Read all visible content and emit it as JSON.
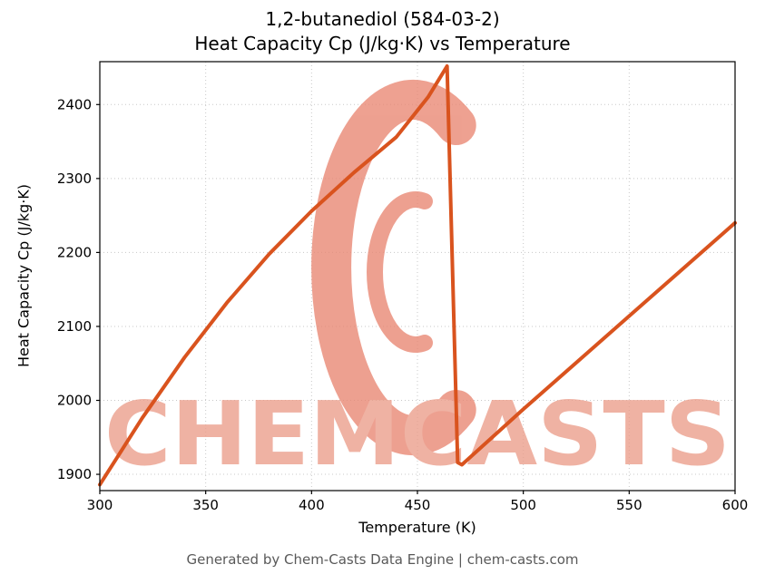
{
  "title": {
    "line1": "1,2-butanediol (584-03-2)",
    "line2": "Heat Capacity Cp (J/kg·K) vs Temperature"
  },
  "chart_data": {
    "type": "line",
    "title": "1,2-butanediol (584-03-2) Heat Capacity Cp (J/kg·K) vs Temperature",
    "xlabel": "Temperature (K)",
    "ylabel": "Heat Capacity Cp (J/kg·K)",
    "xlim": [
      300,
      600
    ],
    "ylim": [
      1878,
      2458
    ],
    "xticks": [
      300,
      350,
      400,
      450,
      500,
      550,
      600
    ],
    "yticks": [
      1900,
      2000,
      2100,
      2200,
      2300,
      2400
    ],
    "grid": true,
    "grid_style": "dotted",
    "grid_color": "#c8c8c8",
    "series": [
      {
        "name": "Heat Capacity Cp",
        "color": "#d9531e",
        "points": [
          [
            300,
            1886
          ],
          [
            320,
            1976
          ],
          [
            340,
            2058
          ],
          [
            360,
            2132
          ],
          [
            380,
            2198
          ],
          [
            400,
            2256
          ],
          [
            420,
            2308
          ],
          [
            440,
            2356
          ],
          [
            455,
            2410
          ],
          [
            464,
            2452
          ],
          [
            469,
            1916
          ],
          [
            471,
            1913
          ],
          [
            500,
            1988
          ],
          [
            550,
            2114
          ],
          [
            600,
            2240
          ]
        ]
      }
    ]
  },
  "watermark": {
    "text": "CHEMCASTS",
    "logo_color": "#e98672",
    "text_color": "#eb9d8a"
  },
  "footer": {
    "text": "Generated by Chem-Casts Data Engine | chem-casts.com"
  }
}
